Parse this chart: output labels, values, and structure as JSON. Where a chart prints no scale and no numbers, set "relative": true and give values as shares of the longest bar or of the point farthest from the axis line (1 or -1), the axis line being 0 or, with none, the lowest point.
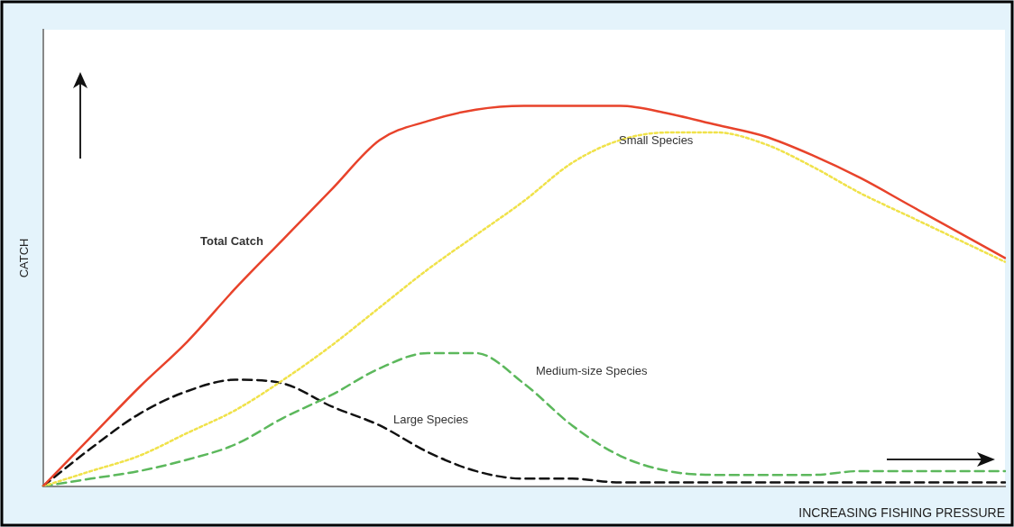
{
  "chart_data": {
    "type": "line",
    "relative": true,
    "xlabel": "INCREASING FISHING PRESSURE",
    "ylabel": "CATCH",
    "legend": false,
    "grid": false,
    "marker": "none",
    "categories": [
      null,
      null,
      null,
      null,
      null,
      null,
      null,
      null,
      null,
      null,
      null,
      null,
      null,
      null,
      null,
      null,
      null,
      null,
      null,
      null,
      null
    ],
    "series": [
      {
        "name": "Total Catch",
        "color": "#e8432b",
        "line_style": "solid",
        "values": [
          0,
          0.13,
          0.26,
          0.38,
          0.52,
          0.65,
          0.78,
          0.91,
          0.96,
          0.99,
          1,
          1,
          1,
          0.98,
          0.95,
          0.92,
          0.87,
          0.81,
          0.74,
          0.67,
          0.6
        ]
      },
      {
        "name": "Small Species",
        "color": "#f0e24a",
        "line_style": "dotted",
        "values": [
          0,
          0.04,
          0.08,
          0.14,
          0.2,
          0.28,
          0.37,
          0.47,
          0.57,
          0.66,
          0.75,
          0.85,
          0.91,
          0.93,
          0.93,
          0.9,
          0.84,
          0.77,
          0.71,
          0.65,
          0.59
        ]
      },
      {
        "name": "Medium-size Species",
        "color": "#5cb85c",
        "line_style": "dashed",
        "values": [
          0,
          0.02,
          0.04,
          0.07,
          0.11,
          0.18,
          0.24,
          0.31,
          0.35,
          0.35,
          0.27,
          0.16,
          0.08,
          0.04,
          0.03,
          0.03,
          0.03,
          0.04,
          0.04,
          0.04,
          0.04
        ]
      },
      {
        "name": "Large Species",
        "color": "#111111",
        "line_style": "dashed",
        "values": [
          0,
          0.1,
          0.19,
          0.25,
          0.28,
          0.27,
          0.21,
          0.16,
          0.09,
          0.04,
          0.02,
          0.02,
          0.01,
          0.01,
          0.01,
          0.01,
          0.01,
          0.01,
          0.01,
          0.01,
          0.01
        ]
      }
    ]
  }
}
